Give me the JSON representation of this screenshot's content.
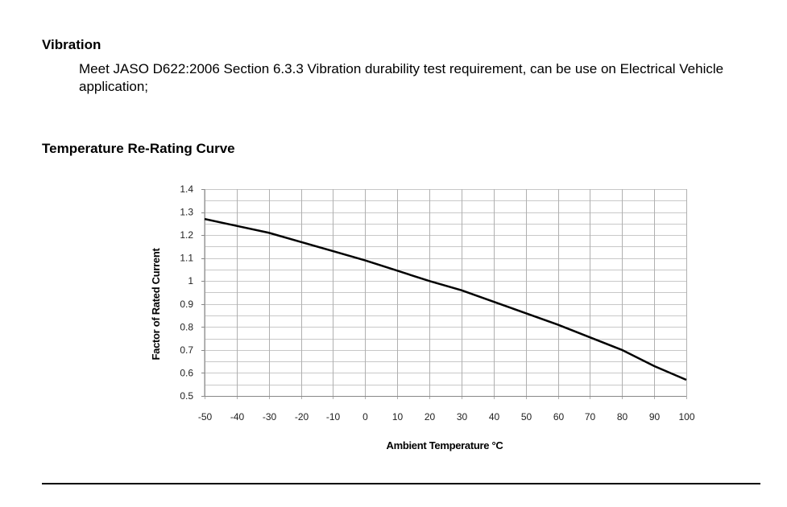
{
  "vibration": {
    "heading": "Vibration",
    "text": "Meet JASO D622:2006 Section 6.3.3 Vibration durability test requirement, can be use on Electrical Vehicle application;"
  },
  "curve_heading": "Temperature Re-Rating Curve",
  "chart_data": {
    "type": "line",
    "title": "",
    "xlabel": "Ambient Temperature °C",
    "ylabel": "Factor of Rated Current",
    "xlim": [
      -50,
      100
    ],
    "ylim": [
      0.5,
      1.4
    ],
    "xticks": [
      "-50",
      "-40",
      "-30",
      "-20",
      "-10",
      "0",
      "10",
      "20",
      "30",
      "40",
      "50",
      "60",
      "70",
      "80",
      "90",
      "100"
    ],
    "yticks": [
      "1.4",
      "1.3",
      "1.2",
      "1.1",
      "1",
      "0.9",
      "0.8",
      "0.7",
      "0.6",
      "0.5"
    ],
    "grid": true,
    "line_color": "#000000",
    "x": [
      -50,
      -40,
      -30,
      -20,
      -10,
      0,
      10,
      20,
      30,
      40,
      50,
      60,
      70,
      80,
      90,
      100
    ],
    "y": [
      1.27,
      1.24,
      1.21,
      1.17,
      1.13,
      1.09,
      1.045,
      1.0,
      0.96,
      0.91,
      0.86,
      0.81,
      0.755,
      0.7,
      0.63,
      0.57
    ]
  }
}
